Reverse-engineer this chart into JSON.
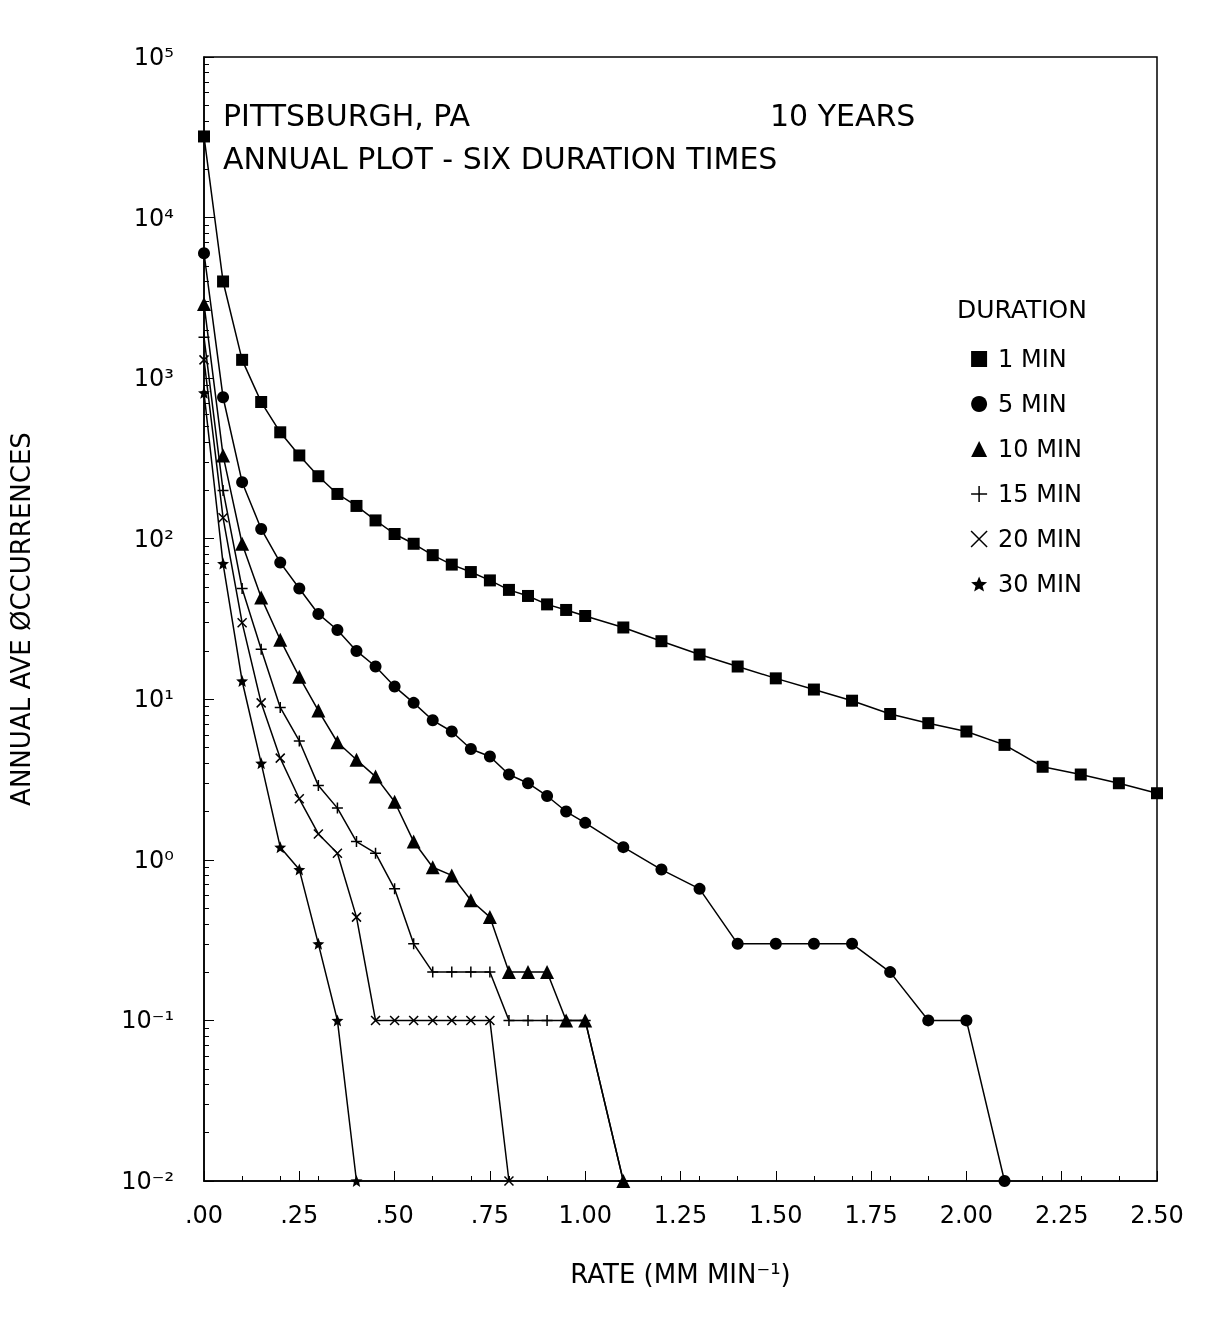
{
  "chart_data": {
    "type": "line",
    "title": "PITTSBURGH, PA",
    "subtitle": "ANNUAL PLOT - SIX DURATION TIMES",
    "annotations": [
      "10 YEARS"
    ],
    "xlabel": "RATE (MM MIN⁻¹)",
    "ylabel": "ANNUAL AVE ØCCURRENCES",
    "legend_title": "DURATION",
    "legend": "top right",
    "log": "y",
    "grid": false,
    "line_style": "solid",
    "xlim": [
      0,
      2.5
    ],
    "xticks": [
      {
        "value": 0,
        "label": ".00"
      },
      {
        "value": 0.25,
        "label": ".25"
      },
      {
        "value": 0.5,
        "label": ".50"
      },
      {
        "value": 0.75,
        "label": ".75"
      },
      {
        "value": 1,
        "label": "1.00"
      },
      {
        "value": 1.25,
        "label": "1.25"
      },
      {
        "value": 1.5,
        "label": "1.50"
      },
      {
        "value": 1.75,
        "label": "1.75"
      },
      {
        "value": 2,
        "label": "2.00"
      },
      {
        "value": 2.25,
        "label": "2.25"
      },
      {
        "value": 2.5,
        "label": "2.50"
      }
    ],
    "ylim": [
      0.01,
      100000
    ],
    "yticks": [
      {
        "value": 0.01,
        "label": "10⁻²"
      },
      {
        "value": 0.1,
        "label": "10⁻¹"
      },
      {
        "value": 1,
        "label": "10⁰"
      },
      {
        "value": 10,
        "label": "10¹"
      },
      {
        "value": 100,
        "label": "10²"
      },
      {
        "value": 1000,
        "label": "10³"
      },
      {
        "value": 10000,
        "label": "10⁴"
      },
      {
        "value": 100000,
        "label": "10⁵"
      }
    ],
    "series": [
      {
        "name": "1 MIN",
        "color": "#000000",
        "marker": "square",
        "x": [
          0,
          0.05,
          0.1,
          0.15,
          0.2,
          0.25,
          0.3,
          0.35,
          0.4,
          0.45,
          0.5,
          0.55,
          0.6,
          0.65,
          0.7,
          0.75,
          0.8,
          0.85,
          0.9,
          0.95,
          1,
          1.1,
          1.2,
          1.3,
          1.4,
          1.5,
          1.6,
          1.7,
          1.8,
          1.9,
          2,
          2.1,
          2.2,
          2.3,
          2.4,
          2.5
        ],
        "values": [
          32000,
          4000,
          1300,
          710,
          460,
          330,
          245,
          190,
          160,
          130,
          107,
          93,
          79,
          69,
          62,
          55,
          48,
          44,
          39,
          36,
          33,
          28,
          23,
          19,
          16,
          13.5,
          11.5,
          9.8,
          8.1,
          7.1,
          6.3,
          5.2,
          3.8,
          3.4,
          3.0,
          2.6
        ]
      },
      {
        "name": "5 MIN",
        "color": "#000000",
        "marker": "circle",
        "x": [
          0,
          0.05,
          0.1,
          0.15,
          0.2,
          0.25,
          0.3,
          0.35,
          0.4,
          0.45,
          0.5,
          0.55,
          0.6,
          0.65,
          0.7,
          0.75,
          0.8,
          0.85,
          0.9,
          0.95,
          1,
          1.1,
          1.2,
          1.3,
          1.4,
          1.5,
          1.6,
          1.7,
          1.8,
          1.9,
          2,
          2.1
        ],
        "values": [
          6000,
          760,
          225,
          115,
          71,
          49,
          34,
          27,
          20,
          16,
          12,
          9.5,
          7.4,
          6.3,
          4.9,
          4.4,
          3.4,
          3.0,
          2.5,
          2.0,
          1.7,
          1.2,
          0.87,
          0.66,
          0.3,
          0.3,
          0.3,
          0.3,
          0.2,
          0.1,
          0.1,
          0.01
        ]
      },
      {
        "name": "10 MIN",
        "color": "#000000",
        "marker": "triangle",
        "x": [
          0,
          0.05,
          0.1,
          0.15,
          0.2,
          0.25,
          0.3,
          0.35,
          0.4,
          0.45,
          0.5,
          0.55,
          0.6,
          0.65,
          0.7,
          0.75,
          0.8,
          0.85,
          0.9,
          0.95,
          1,
          1.1
        ],
        "values": [
          2900,
          330,
          93,
          43,
          23.5,
          13.8,
          8.5,
          5.4,
          4.2,
          3.3,
          2.3,
          1.3,
          0.9,
          0.8,
          0.56,
          0.44,
          0.2,
          0.2,
          0.2,
          0.1,
          0.1,
          0.01
        ]
      },
      {
        "name": "15 MIN",
        "color": "#000000",
        "marker": "plus",
        "x": [
          0,
          0.05,
          0.1,
          0.15,
          0.2,
          0.25,
          0.3,
          0.35,
          0.4,
          0.45,
          0.5,
          0.55,
          0.6,
          0.65,
          0.7,
          0.75,
          0.8,
          0.85,
          0.9,
          0.95,
          1,
          1.1
        ],
        "values": [
          1800,
          200,
          49,
          20.5,
          8.9,
          5.5,
          2.9,
          2.1,
          1.3,
          1.1,
          0.66,
          0.3,
          0.2,
          0.2,
          0.2,
          0.2,
          0.1,
          0.1,
          0.1,
          0.1,
          0.1,
          0.01
        ]
      },
      {
        "name": "20 MIN",
        "color": "#000000",
        "marker": "cross",
        "x": [
          0,
          0.05,
          0.1,
          0.15,
          0.2,
          0.25,
          0.3,
          0.35,
          0.4,
          0.45,
          0.5,
          0.55,
          0.6,
          0.65,
          0.7,
          0.75,
          0.8
        ],
        "values": [
          1300,
          135,
          30,
          9.5,
          4.3,
          2.4,
          1.45,
          1.1,
          0.44,
          0.1,
          0.1,
          0.1,
          0.1,
          0.1,
          0.1,
          0.1,
          0.01
        ]
      },
      {
        "name": "30 MIN",
        "color": "#000000",
        "marker": "star",
        "x": [
          0,
          0.05,
          0.1,
          0.15,
          0.2,
          0.25,
          0.3,
          0.35,
          0.4
        ],
        "values": [
          810,
          70,
          13,
          4.0,
          1.2,
          0.87,
          0.3,
          0.1,
          0.01
        ]
      }
    ]
  }
}
